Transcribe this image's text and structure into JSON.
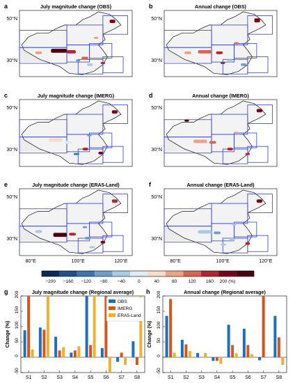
{
  "map_panels": [
    {
      "letter": "a",
      "title": "July magnitude change (OBS)"
    },
    {
      "letter": "b",
      "title": "Annual change (OBS)"
    },
    {
      "letter": "c",
      "title": "July magnitude change (IMERG)"
    },
    {
      "letter": "d",
      "title": "Annual change (IMERG)"
    },
    {
      "letter": "e",
      "title": "July magnitude change (ERA5-Land)"
    },
    {
      "letter": "f",
      "title": "Annual change (ERA5-Land)"
    }
  ],
  "map_axis": {
    "lat_ticks": [
      "50°N",
      "30°N"
    ],
    "lon_ticks": [
      "80°E",
      "100°E",
      "120°E"
    ]
  },
  "colorbar": {
    "ticks": [
      "−200",
      "−160",
      "−120",
      "−80",
      "−40",
      "0",
      "40",
      "80",
      "120",
      "160",
      "200 (%)"
    ],
    "colors": [
      "#0b2a5e",
      "#1f4f8c",
      "#3a77b4",
      "#6a9fcf",
      "#a9cae4",
      "#dfeaf3",
      "#f8dcc6",
      "#eea283",
      "#d9644f",
      "#b3262f",
      "#7a0018",
      "#4a0010"
    ]
  },
  "series_colors": {
    "OBS": "#1f6fc0",
    "IMERG": "#d4561b",
    "ERA5-Land": "#eeb032"
  },
  "chart_data": [
    {
      "type": "bar",
      "letter": "g",
      "title": "July magnitude change (Regional average)",
      "ylabel": "Change (%)",
      "xlabel": "",
      "ylim": [
        -50,
        200
      ],
      "yticks": [
        -50,
        0,
        50,
        100,
        150,
        200
      ],
      "categories": [
        "S1",
        "S2",
        "S3",
        "S4",
        "S5",
        "S6",
        "S7",
        "S8"
      ],
      "series": [
        {
          "name": "OBS",
          "values": [
            88,
            97,
            67,
            15,
            205,
            30,
            -15,
            52
          ]
        },
        {
          "name": "IMERG",
          "values": [
            220,
            90,
            22,
            22,
            40,
            220,
            15,
            -25
          ]
        },
        {
          "name": "ERA5-Land",
          "values": [
            25,
            200,
            33,
            36,
            200,
            -50,
            -25,
            205
          ]
        }
      ],
      "legend": "top-right",
      "grid": false
    },
    {
      "type": "bar",
      "letter": "h",
      "title": "Annual change (Regional average)",
      "ylabel": "Change (%)",
      "xlabel": "",
      "ylim": [
        -50,
        200
      ],
      "yticks": [
        -50,
        0,
        50,
        100,
        150,
        200
      ],
      "categories": [
        "S1",
        "S2",
        "S3",
        "S4",
        "S5",
        "S6",
        "S7",
        "S8"
      ],
      "series": [
        {
          "name": "OBS",
          "values": [
            135,
            57,
            14,
            -12,
            106,
            93,
            -10,
            135
          ]
        },
        {
          "name": "IMERG",
          "values": [
            190,
            42,
            0,
            -12,
            40,
            40,
            205,
            65
          ]
        },
        {
          "name": "ERA5-Land",
          "values": [
            15,
            20,
            14,
            -22,
            13,
            10,
            0,
            -25
          ]
        }
      ],
      "legend": "none",
      "grid": false
    }
  ]
}
